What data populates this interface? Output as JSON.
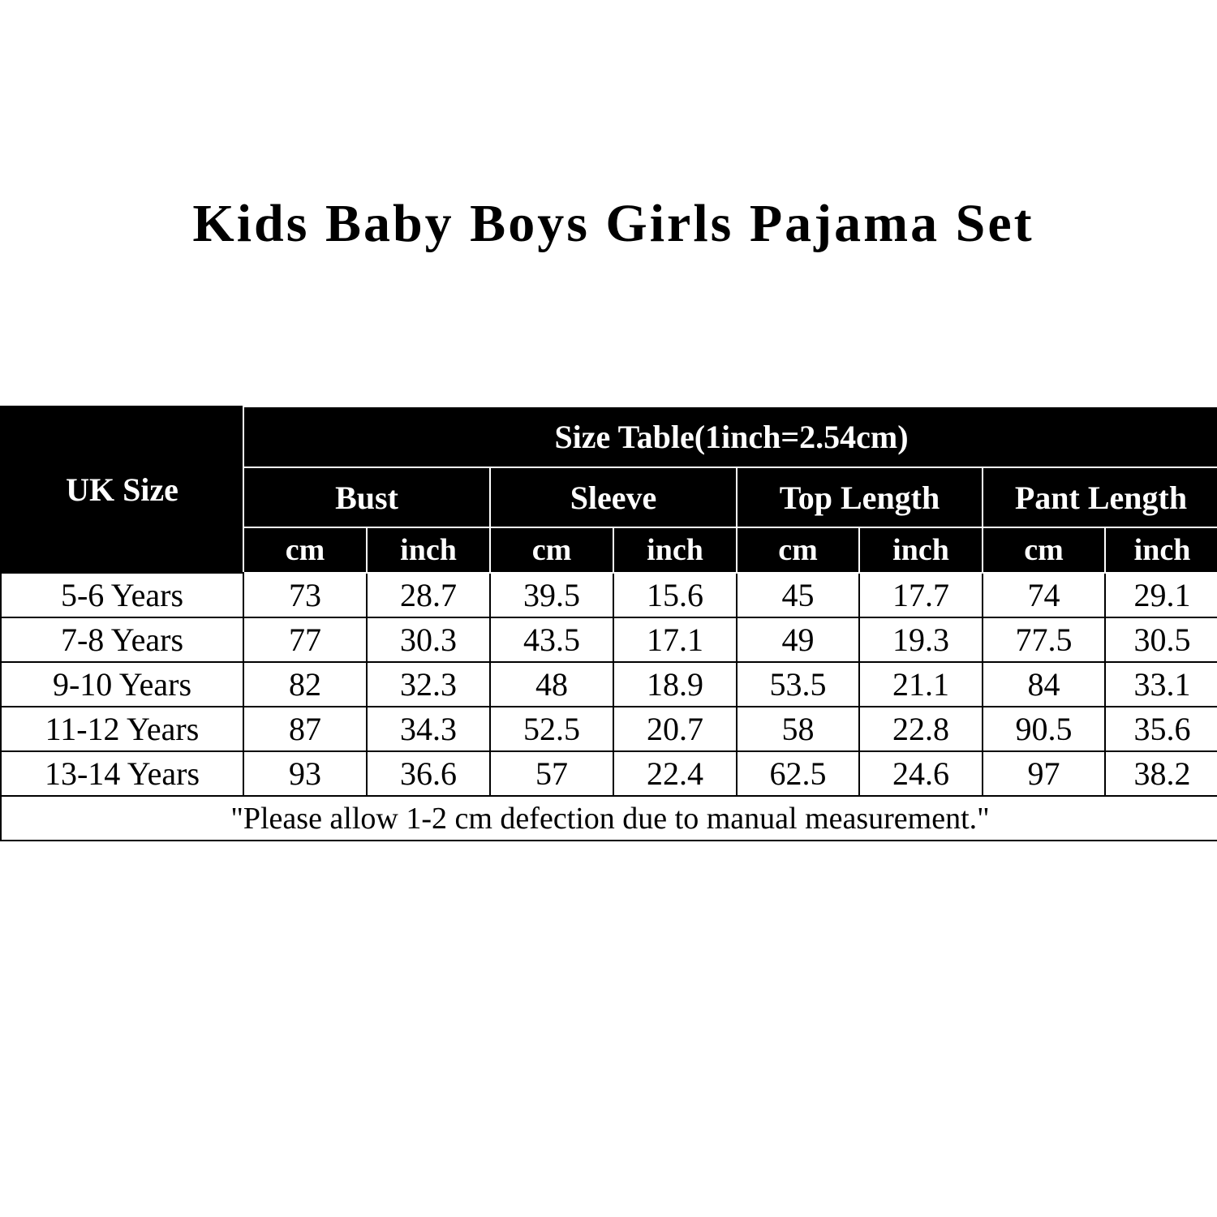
{
  "title": "Kids Baby Boys Girls Pajama Set",
  "table": {
    "size_col_header": "UK Size",
    "caption": "Size Table(1inch=2.54cm)",
    "groups": [
      "Bust",
      "Sleeve",
      "Top Length",
      "Pant Length"
    ],
    "units": [
      "cm",
      "inch"
    ],
    "rows": [
      {
        "size": "5-6 Years",
        "values": [
          "73",
          "28.7",
          "39.5",
          "15.6",
          "45",
          "17.7",
          "74",
          "29.1"
        ]
      },
      {
        "size": "7-8 Years",
        "values": [
          "77",
          "30.3",
          "43.5",
          "17.1",
          "49",
          "19.3",
          "77.5",
          "30.5"
        ]
      },
      {
        "size": "9-10 Years",
        "values": [
          "82",
          "32.3",
          "48",
          "18.9",
          "53.5",
          "21.1",
          "84",
          "33.1"
        ]
      },
      {
        "size": "11-12 Years",
        "values": [
          "87",
          "34.3",
          "52.5",
          "20.7",
          "58",
          "22.8",
          "90.5",
          "35.6"
        ]
      },
      {
        "size": "13-14 Years",
        "values": [
          "93",
          "36.6",
          "57",
          "22.4",
          "62.5",
          "24.6",
          "97",
          "38.2"
        ]
      }
    ],
    "footnote": "\"Please allow 1-2 cm defection due to manual measurement.\""
  }
}
